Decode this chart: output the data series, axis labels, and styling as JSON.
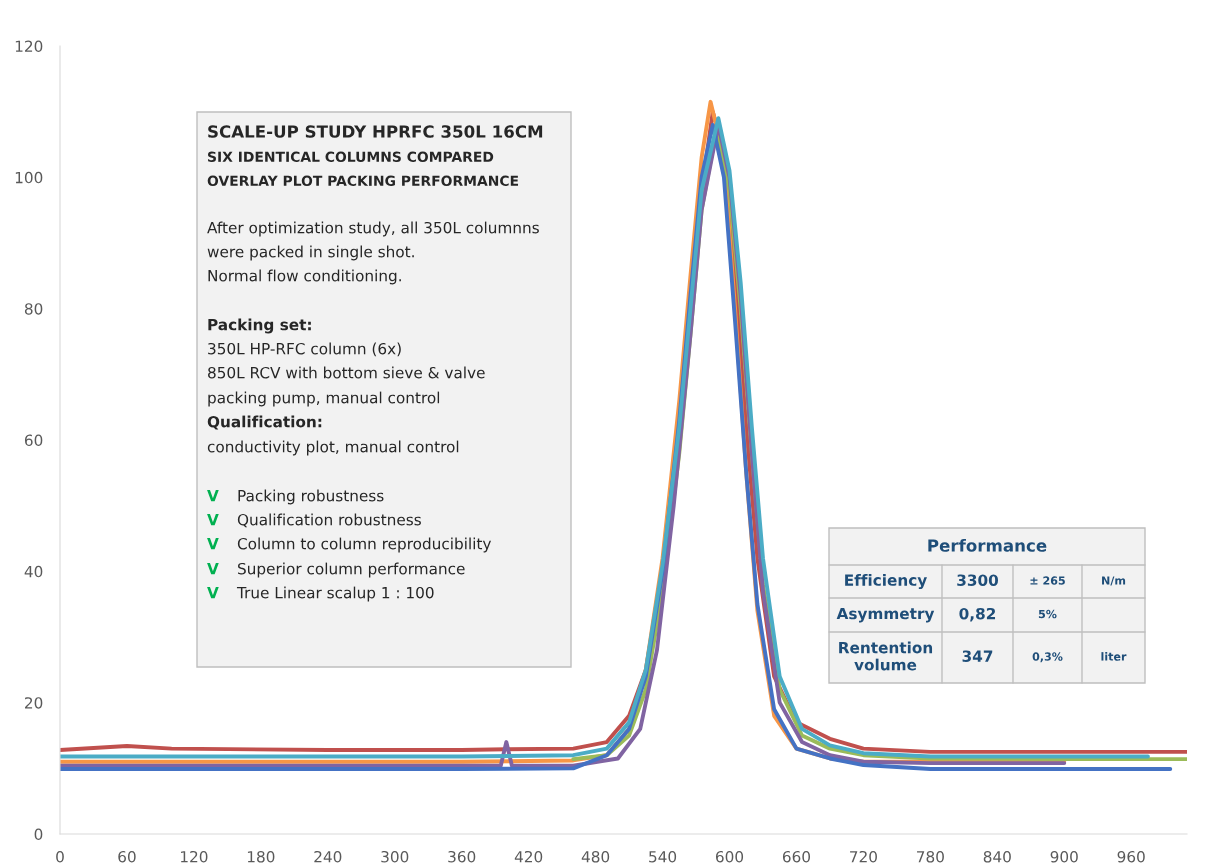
{
  "chart_data": {
    "type": "line",
    "xlim": [
      0,
      1010
    ],
    "ylim": [
      0,
      120
    ],
    "xticks": [
      0,
      60,
      120,
      180,
      240,
      300,
      360,
      420,
      480,
      540,
      600,
      660,
      720,
      780,
      840,
      900,
      960
    ],
    "yticks": [
      0,
      20,
      40,
      60,
      80,
      100,
      120
    ],
    "grid": false,
    "legend": false,
    "marker": "none",
    "line_style": "solid",
    "series": [
      {
        "color": "#c0504d",
        "x": [
          0,
          60,
          100,
          240,
          360,
          400,
          460,
          490,
          510,
          525,
          540,
          555,
          565,
          575,
          585,
          595,
          605,
          615,
          625,
          640,
          660,
          690,
          720,
          780,
          900,
          1010
        ],
        "values": [
          12.8,
          13.4,
          13,
          12.8,
          12.8,
          12.9,
          13,
          14,
          18,
          25,
          40,
          62,
          80,
          98,
          110,
          104,
          85,
          62,
          42,
          24,
          17,
          14.5,
          13,
          12.5,
          12.5,
          12.5
        ]
      },
      {
        "color": "#f79646",
        "x": [
          0,
          120,
          240,
          360,
          460,
          490,
          510,
          525,
          540,
          555,
          565,
          575,
          583,
          595,
          605,
          615,
          625,
          640,
          660,
          690,
          720,
          780,
          900
        ],
        "values": [
          11,
          11,
          11,
          11,
          11.2,
          12,
          16,
          25,
          42,
          66,
          85,
          103,
          111.5,
          103,
          80,
          55,
          34,
          18,
          13,
          11.5,
          11,
          11,
          11
        ]
      },
      {
        "color": "#9bbb59",
        "x": [
          460,
          490,
          510,
          525,
          540,
          555,
          565,
          575,
          588,
          600,
          610,
          620,
          630,
          645,
          665,
          690,
          720,
          780,
          900,
          1010
        ],
        "values": [
          11.4,
          12,
          15,
          22,
          37,
          58,
          76,
          95,
          107,
          98,
          80,
          58,
          38,
          22,
          15,
          13,
          12,
          11.5,
          11.4,
          11.4
        ]
      },
      {
        "color": "#8064a2",
        "x": [
          0,
          120,
          240,
          360,
          395,
          400,
          405,
          460,
          500,
          520,
          535,
          550,
          565,
          575,
          590,
          600,
          610,
          620,
          630,
          645,
          665,
          690,
          720,
          780,
          900
        ],
        "values": [
          10.4,
          10.4,
          10.4,
          10.4,
          10.4,
          14,
          10.4,
          10.4,
          11.5,
          16,
          28,
          50,
          76,
          95,
          108,
          100,
          82,
          58,
          37,
          20,
          14,
          12,
          11,
          10.8,
          10.8
        ]
      },
      {
        "color": "#4472c4",
        "x": [
          0,
          120,
          240,
          360,
          460,
          490,
          510,
          525,
          540,
          555,
          565,
          575,
          585,
          595,
          605,
          615,
          625,
          640,
          660,
          690,
          720,
          780,
          900,
          995
        ],
        "values": [
          9.9,
          9.9,
          9.9,
          9.9,
          10,
          12,
          16,
          24,
          40,
          63,
          82,
          100,
          108,
          100,
          78,
          55,
          35,
          19,
          13,
          11.5,
          10.5,
          9.9,
          9.9,
          9.9
        ]
      },
      {
        "color": "#4bacc6",
        "x": [
          0,
          120,
          240,
          360,
          460,
          490,
          510,
          525,
          540,
          555,
          565,
          575,
          590,
          600,
          610,
          620,
          630,
          645,
          665,
          690,
          720,
          780,
          900,
          975
        ],
        "values": [
          11.8,
          11.8,
          11.8,
          11.8,
          12,
          13,
          17,
          25,
          41,
          62,
          80,
          98,
          109,
          101,
          84,
          62,
          42,
          24,
          16,
          13.5,
          12.3,
          11.8,
          11.8,
          11.8
        ]
      }
    ],
    "annotations": [
      "SCALE-UP STUDY HPRFC 350L 16CM",
      "SIX IDENTICAL COLUMNS COMPARED",
      "OVERLAY PLOT PACKING PERFORMANCE",
      "After optimization study, all 350L columnns",
      "were packed in single shot.",
      "Normal flow conditioning.",
      "Packing set:",
      "350L HP-RFC column (6x)",
      "850L RCV with bottom sieve & valve",
      "packing pump, manual control",
      "Qualification:",
      "conductivity plot, manual control",
      "V Packing robustness",
      "V Qualification robustness",
      "V Column to column reproducibility",
      "V Superior column performance",
      "V True Linear scalup 1 : 100",
      "Performance",
      "Efficiency",
      "3300",
      "± 265",
      "N/m",
      "Asymmetry",
      "0,82",
      "5%",
      "Rentention\nvolume",
      "347",
      "0,3%",
      "liter"
    ]
  }
}
